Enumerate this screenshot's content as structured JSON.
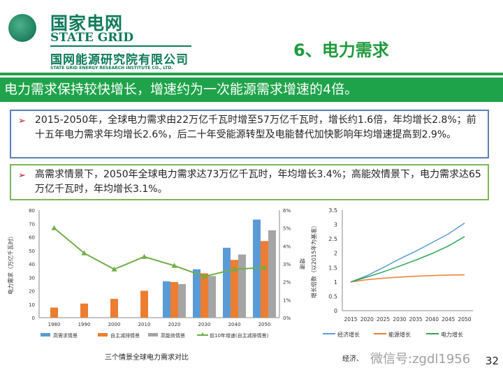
{
  "header": {
    "logo_cn": "国家电网",
    "logo_en": "STATE GRID",
    "institute_cn": "国网能源研究院有限公司",
    "institute_en": "STATE GRID ENERGY RESEARCH INSTITUTE CO., LTD.",
    "section_title": "6、电力需求"
  },
  "banner": "电力需求保持较快增长，增速约为一次能源需求增速的4倍。",
  "bullets": [
    "2015-2050年，全球电力需求由22万亿千瓦时增至57万亿千瓦时，增长约1.6倍，年均增长2.8%；前十五年电力需求年均增长2.6%，后二十年受能源转型及电能替代加快影响年均增速提高到2.9%。",
    "高需求情景下，2050年全球电力需求达73万亿千瓦时，年均增长3.4%；高能效情景下，电力需求达65万亿千瓦时，年均增长3.1%。"
  ],
  "footer": {
    "page": "32",
    "watermark": "微信号:zgdl1956",
    "caption_right": "经济、"
  },
  "colors": {
    "green": "#1fa34a",
    "blue": "#5b9bd5",
    "orange": "#ed7d31",
    "gray": "#a5a5a5",
    "line": "#70ad47"
  },
  "chart_data": [
    {
      "type": "bar",
      "title": "三个情景全球电力需求对比",
      "ylabel": "电力需求（万亿千瓦时）",
      "y2label": "增速",
      "ylim": [
        0,
        80
      ],
      "y2lim": [
        0,
        6
      ],
      "yticks": [
        "0",
        "10",
        "20",
        "30",
        "40",
        "50",
        "60",
        "70",
        "80"
      ],
      "y2ticks": [
        "0%",
        "1%",
        "2%",
        "3%",
        "4%",
        "5%",
        "6%"
      ],
      "categories": [
        "1980",
        "1990",
        "2000",
        "2010",
        "2020",
        "2030",
        "2040",
        "2050"
      ],
      "series": [
        {
          "name": "高需求情景",
          "values": [
            null,
            null,
            null,
            null,
            27,
            36,
            52,
            73
          ]
        },
        {
          "name": "自主减排情景",
          "values": [
            7.5,
            10.5,
            14,
            20,
            26.5,
            33,
            43,
            57
          ]
        },
        {
          "name": "高能效情景",
          "values": [
            null,
            null,
            null,
            null,
            25,
            31,
            47,
            65
          ]
        },
        {
          "name": "前10年增速(自主减排情景)",
          "axis": "right",
          "values": [
            5.0,
            3.6,
            2.7,
            3.4,
            2.9,
            2.3,
            2.7,
            2.8
          ]
        }
      ]
    },
    {
      "type": "line",
      "ylabel": "增长倍数（以2015年为基准）",
      "ylim": [
        0,
        3.5
      ],
      "yticks": [
        "0",
        "0.5",
        "1",
        "1.5",
        "2",
        "2.5",
        "3",
        "3.5"
      ],
      "x": [
        "2015",
        "2020",
        "2025",
        "2030",
        "2035",
        "2040",
        "2045",
        "2050"
      ],
      "series": [
        {
          "name": "经济增长",
          "values": [
            1,
            1.22,
            1.5,
            1.8,
            2.07,
            2.37,
            2.67,
            3.05
          ]
        },
        {
          "name": "能源增长",
          "values": [
            1,
            1.08,
            1.13,
            1.17,
            1.2,
            1.22,
            1.24,
            1.25
          ]
        },
        {
          "name": "电力增长",
          "values": [
            1,
            1.17,
            1.35,
            1.55,
            1.76,
            1.99,
            2.25,
            2.58
          ]
        }
      ]
    }
  ]
}
